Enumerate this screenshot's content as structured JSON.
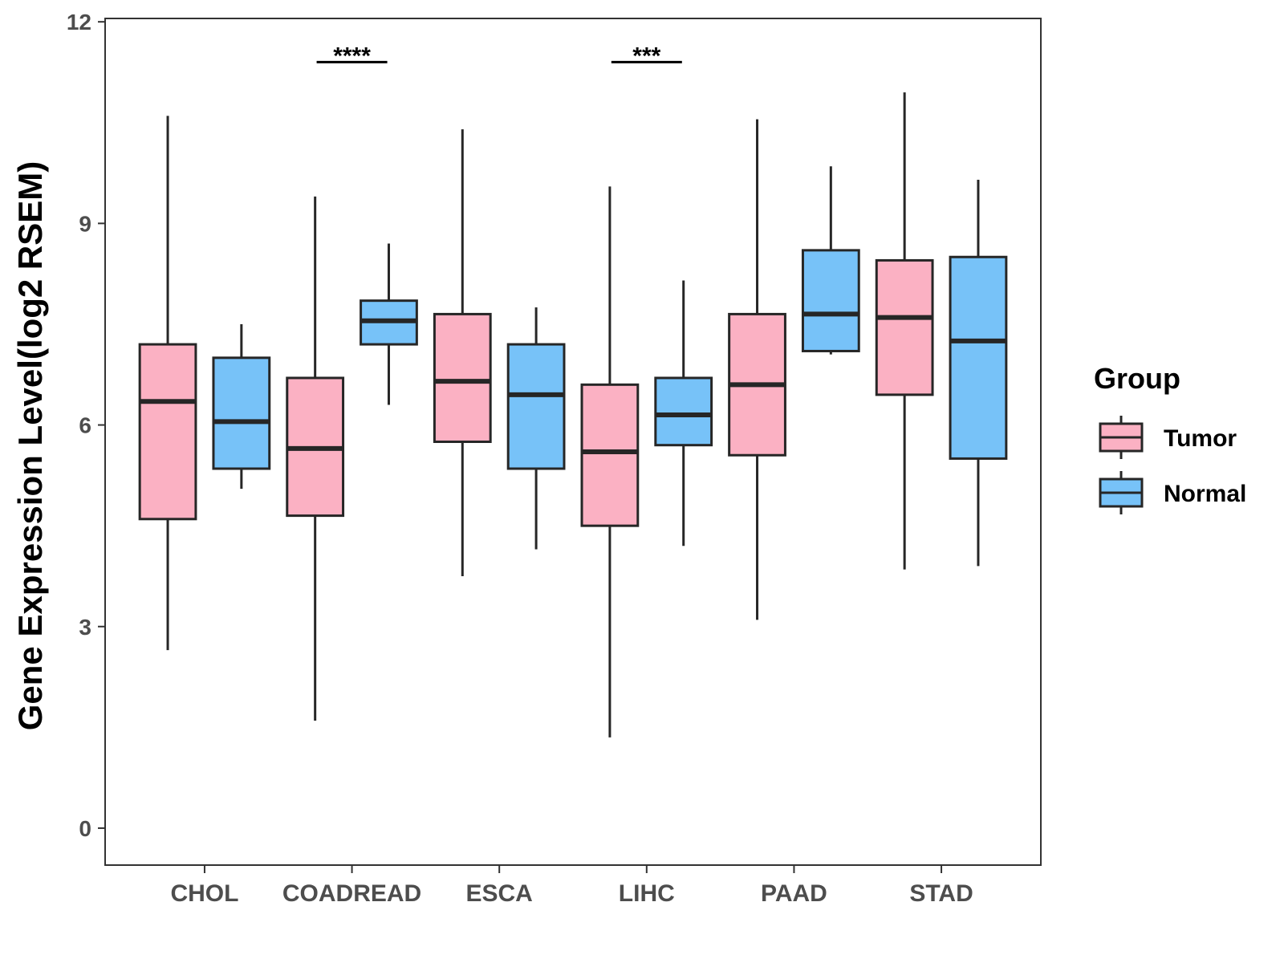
{
  "chart_data": {
    "type": "boxplot",
    "title": "",
    "xlabel": "",
    "ylabel": "Gene Expression Level(log2 RSEM)",
    "ylim": [
      -0.55,
      12.05
    ],
    "yticks": [
      0,
      3,
      6,
      9,
      12
    ],
    "ytick_labels": [
      "0",
      "3",
      "6",
      "9",
      "12"
    ],
    "categories": [
      "CHOL",
      "COADREAD",
      "ESCA",
      "LIHC",
      "PAAD",
      "STAD"
    ],
    "legend": {
      "title": "Group",
      "position": "right",
      "entries": [
        "Tumor",
        "Normal"
      ]
    },
    "series": [
      {
        "name": "Tumor",
        "color": "#fbb1c3",
        "boxes": [
          {
            "min": 2.65,
            "q1": 4.6,
            "median": 6.35,
            "q3": 7.2,
            "max": 10.6
          },
          {
            "min": 1.6,
            "q1": 4.65,
            "median": 5.65,
            "q3": 6.7,
            "max": 9.4
          },
          {
            "min": 3.75,
            "q1": 5.75,
            "median": 6.65,
            "q3": 7.65,
            "max": 10.4
          },
          {
            "min": 1.35,
            "q1": 4.5,
            "median": 5.6,
            "q3": 6.6,
            "max": 9.55
          },
          {
            "min": 3.1,
            "q1": 5.55,
            "median": 6.6,
            "q3": 7.65,
            "max": 10.55
          },
          {
            "min": 3.85,
            "q1": 6.45,
            "median": 7.6,
            "q3": 8.45,
            "max": 10.95
          }
        ]
      },
      {
        "name": "Normal",
        "color": "#77c2f8",
        "boxes": [
          {
            "min": 5.05,
            "q1": 5.35,
            "median": 6.05,
            "q3": 7.0,
            "max": 7.5
          },
          {
            "min": 6.3,
            "q1": 7.2,
            "median": 7.55,
            "q3": 7.85,
            "max": 8.7
          },
          {
            "min": 4.15,
            "q1": 5.35,
            "median": 6.45,
            "q3": 7.2,
            "max": 7.75
          },
          {
            "min": 4.2,
            "q1": 5.7,
            "median": 6.15,
            "q3": 6.7,
            "max": 8.15
          },
          {
            "min": 7.05,
            "q1": 7.1,
            "median": 7.65,
            "q3": 8.6,
            "max": 9.85
          },
          {
            "min": 3.9,
            "q1": 5.5,
            "median": 7.25,
            "q3": 8.5,
            "max": 9.65
          }
        ]
      }
    ],
    "annotations": [
      {
        "category": "COADREAD",
        "text": "****",
        "y": 11.4
      },
      {
        "category": "LIHC",
        "text": "***",
        "y": 11.4
      }
    ]
  }
}
